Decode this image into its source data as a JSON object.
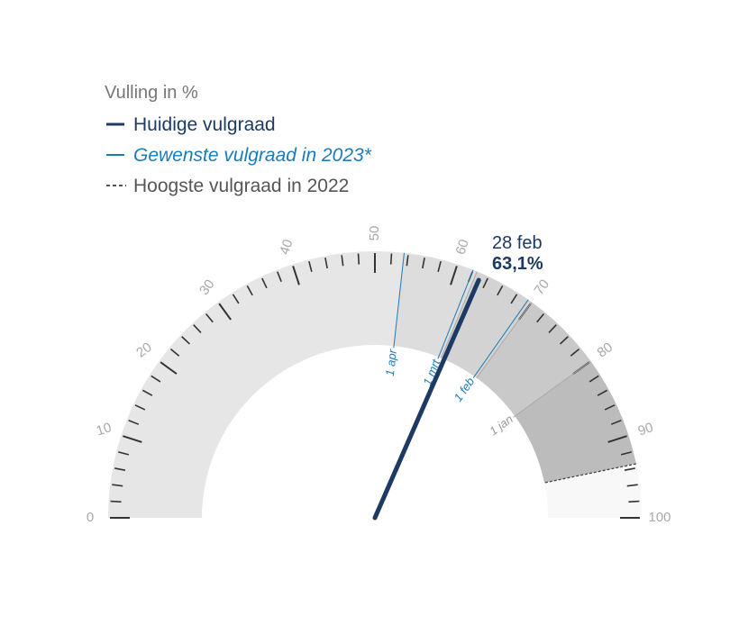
{
  "chart_data": {
    "type": "gauge",
    "title": "Vulling in %",
    "range": [
      0,
      100
    ],
    "ticks": [
      0,
      10,
      20,
      30,
      40,
      50,
      60,
      70,
      80,
      90,
      100
    ],
    "minor_tick_step": 2,
    "legend": [
      {
        "label": "Huidige vulgraad",
        "style": "solid-thick",
        "color": "#1c3a63"
      },
      {
        "label": "Gewenste vulgraad in 2023*",
        "style": "solid-thin",
        "color": "#1a7cb8"
      },
      {
        "label": "Hoogste vulgraad in 2022",
        "style": "dashed",
        "color": "#555555"
      }
    ],
    "current": {
      "value": 63.1,
      "date": "28 feb",
      "value_label": "63,1%",
      "color": "#1c3a63"
    },
    "targets_2023": [
      {
        "label": "1 apr",
        "value": 53.5
      },
      {
        "label": "1 mrt",
        "value": 62
      },
      {
        "label": "1 feb",
        "value": 69.5
      }
    ],
    "highest_2022": {
      "value": 93.5
    },
    "bands": [
      {
        "from": 0,
        "to": 53.5,
        "color": "#e6e6e6"
      },
      {
        "from": 53.5,
        "to": 62.5,
        "color": "#dddddd"
      },
      {
        "from": 62.5,
        "to": 70,
        "color": "#d3d3d3"
      },
      {
        "from": 70,
        "to": 80,
        "color": "#c9c9c9"
      },
      {
        "from": 80,
        "to": 93.5,
        "color": "#bcbcbc"
      },
      {
        "from": 93.5,
        "to": 100,
        "color": "#f8f8f8"
      }
    ],
    "band_markers": [
      {
        "label": "",
        "value": 62.5
      },
      {
        "label": "",
        "value": 70
      },
      {
        "label": "1 jan",
        "value": 80
      }
    ]
  }
}
